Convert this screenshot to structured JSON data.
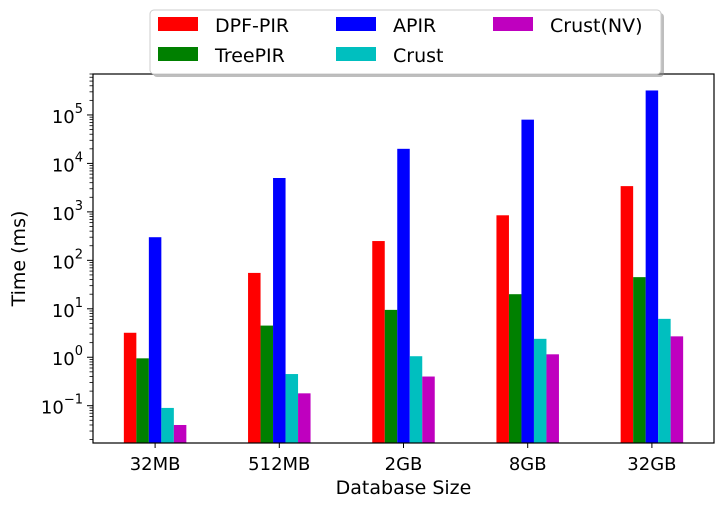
{
  "chart_data": {
    "type": "bar",
    "xlabel": "Database Size",
    "ylabel": "Time (ms)",
    "yscale": "log",
    "ylim": [
      0.017,
      700000
    ],
    "categories": [
      "32MB",
      "512MB",
      "2GB",
      "8GB",
      "32GB"
    ],
    "series": [
      {
        "name": "DPF-PIR",
        "color": "#ff0000",
        "values": [
          3.2,
          55,
          250,
          850,
          3400
        ]
      },
      {
        "name": "TreePIR",
        "color": "#008000",
        "values": [
          0.95,
          4.5,
          9.5,
          20,
          45
        ]
      },
      {
        "name": "APIR",
        "color": "#0000ff",
        "values": [
          300,
          5000,
          20000,
          80000,
          320000
        ]
      },
      {
        "name": "Crust",
        "color": "#00bfbf",
        "values": [
          0.09,
          0.45,
          1.05,
          2.4,
          6.2
        ]
      },
      {
        "name": "Crust(NV)",
        "color": "#bf00bf",
        "values": [
          0.04,
          0.18,
          0.4,
          1.15,
          2.7
        ]
      }
    ],
    "y_ticks": [
      {
        "exp": -1,
        "base": "10",
        "power": "−1"
      },
      {
        "exp": 0,
        "base": "10",
        "power": "0"
      },
      {
        "exp": 1,
        "base": "10",
        "power": "1"
      },
      {
        "exp": 2,
        "base": "10",
        "power": "2"
      },
      {
        "exp": 3,
        "base": "10",
        "power": "3"
      },
      {
        "exp": 4,
        "base": "10",
        "power": "4"
      },
      {
        "exp": 5,
        "base": "10",
        "power": "5"
      }
    ],
    "legend": {
      "position": "top-center",
      "columns": 3,
      "shadow": true
    },
    "grid": false
  }
}
